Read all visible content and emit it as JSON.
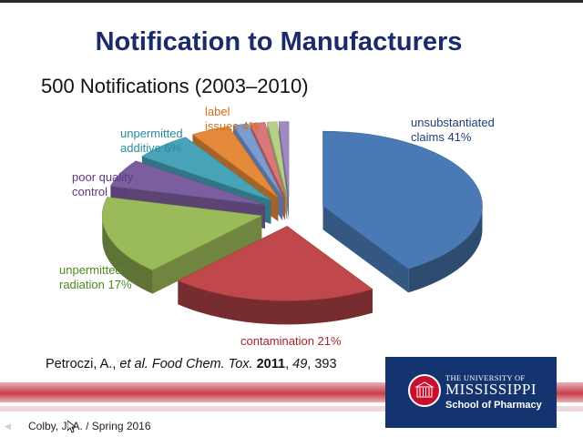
{
  "slide": {
    "title": "Notification to Manufacturers",
    "subtitle": "500 Notifications (2003–2010)",
    "footer": "Colby, J. A. / Spring 2016"
  },
  "citation": {
    "authors": "Petroczi, A., ",
    "etal": "et al.",
    "journal": " Food Chem. Tox.",
    "year": "2011",
    "volume": "49",
    "page": "393",
    "sep1": " ",
    "sep2": ", ",
    "sep3": ", "
  },
  "logo": {
    "line1": "THE UNIVERSITY OF",
    "line2": "MISSISSIPPI",
    "line3": "School of Pharmacy"
  },
  "chart_data": {
    "type": "pie",
    "title": "",
    "unit": "%",
    "slices": [
      {
        "label_lines": [
          "unsubstantiated",
          "claims 41%"
        ],
        "name": "unsubstantiated claims",
        "value": 41,
        "color": "#4a7ab5"
      },
      {
        "label_lines": [
          "contamination 21%"
        ],
        "name": "contamination",
        "value": 21,
        "color": "#c0484b"
      },
      {
        "label_lines": [
          "unpermitted",
          "radiation 17%"
        ],
        "name": "unpermitted radiation",
        "value": 17,
        "color": "#9bba59"
      },
      {
        "label_lines": [
          "poor quality",
          "control 6%"
        ],
        "name": "poor quality control",
        "value": 6,
        "color": "#7b5e9f"
      },
      {
        "label_lines": [
          "unpermitted",
          "additive 6%"
        ],
        "name": "unpermitted additive",
        "value": 6,
        "color": "#46a3b8"
      },
      {
        "label_lines": [
          "label",
          "issues 4%"
        ],
        "name": "label issues",
        "value": 4,
        "color": "#e58a3a"
      },
      {
        "label_lines": [],
        "name": "",
        "value": 1.5,
        "color": "#7a9cd0"
      },
      {
        "label_lines": [],
        "name": "",
        "value": 1.5,
        "color": "#d9787a"
      },
      {
        "label_lines": [],
        "name": "",
        "value": 1,
        "color": "#b9cf86"
      },
      {
        "label_lines": [],
        "name": "",
        "value": 1,
        "color": "#a08cc2"
      }
    ],
    "label_colors": [
      "#1f3d79",
      "#a3262c",
      "#4f8a21",
      "#5c3a85",
      "#2b8aa3",
      "#d0711c"
    ]
  }
}
